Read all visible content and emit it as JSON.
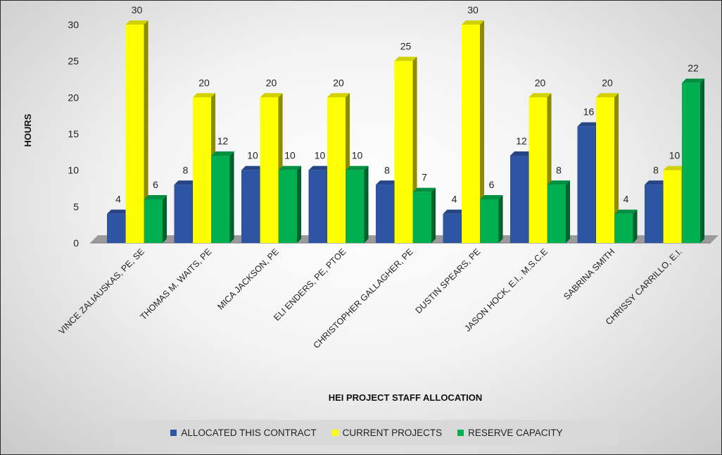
{
  "chart_data": {
    "type": "bar",
    "title": "",
    "xlabel": "HEI PROJECT STAFF ALLOCATION",
    "ylabel": "HOURS",
    "ylim": [
      0,
      30
    ],
    "yticks": [
      0,
      5,
      10,
      15,
      20,
      25,
      30
    ],
    "grid": false,
    "legend_position": "bottom",
    "categories": [
      "VINCE ZALIAUSKAS, PE, SE",
      "THOMAS M. WAITS, PE",
      "MICA JACKSON, PE",
      "ELI ENDERS, PE, PTOE",
      "CHRISTOPHER GALLAGHER, PE",
      "DUSTIN SPEARS, PE",
      "JASON HOCK, E.I., M.S.C.E",
      "SABRINA SMITH",
      "CHRISSY CARRILLO, E.I."
    ],
    "series": [
      {
        "name": "ALLOCATED THIS CONTRACT",
        "color": "#2e54a4",
        "values": [
          4,
          8,
          10,
          10,
          8,
          4,
          12,
          16,
          8
        ]
      },
      {
        "name": "CURRENT PROJECTS",
        "color": "#ffff00",
        "values": [
          30,
          20,
          20,
          20,
          25,
          30,
          20,
          20,
          10
        ]
      },
      {
        "name": "RESERVE CAPACITY",
        "color": "#00b050",
        "values": [
          6,
          12,
          10,
          10,
          7,
          6,
          8,
          4,
          22
        ]
      }
    ]
  }
}
